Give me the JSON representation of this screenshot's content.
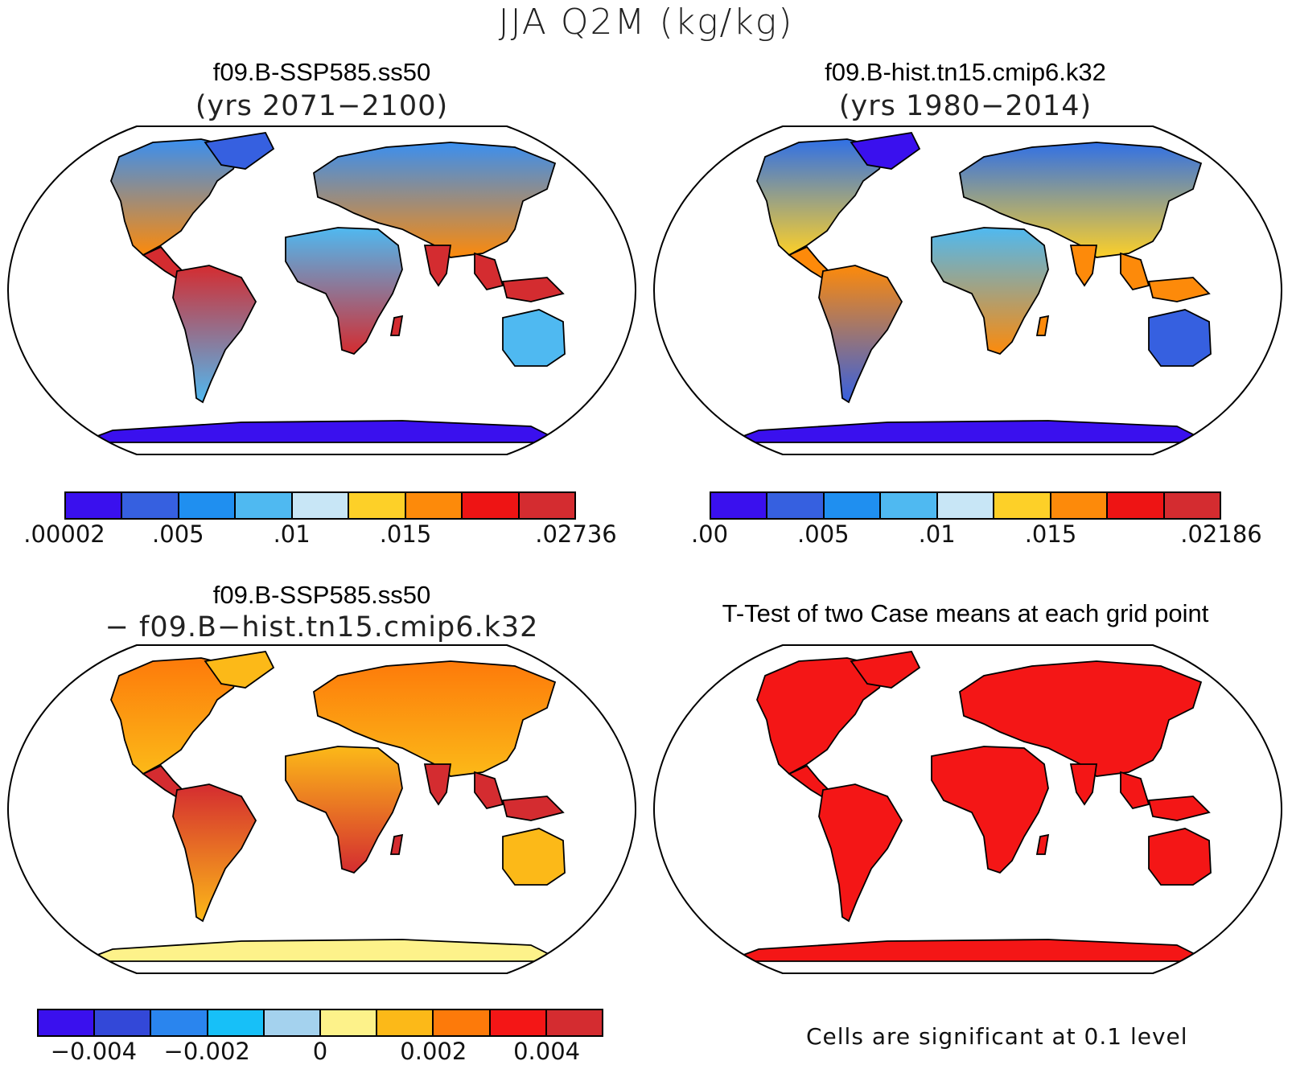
{
  "title": "JJA Q2M (kg/kg)",
  "panels": [
    {
      "id": "p1",
      "title": "f09.B-SSP585.ss50",
      "subtitle": "(yrs 2071−2100)",
      "theme": "future"
    },
    {
      "id": "p2",
      "title": "f09.B-hist.tn15.cmip6.k32",
      "subtitle": "(yrs 1980−2014)",
      "theme": "hist"
    },
    {
      "id": "p3",
      "title": "f09.B-SSP585.ss50",
      "subtitle": "− f09.B−hist.tn15.cmip6.k32",
      "theme": "diff"
    },
    {
      "id": "p4",
      "title": "T-Test of two Case means at each grid point",
      "subtitle": "",
      "theme": "ttest"
    }
  ],
  "colorbars": [
    {
      "id": "cb1",
      "colors": [
        "#3a10ee",
        "#3660e0",
        "#1f8ff0",
        "#4fb9f1",
        "#c8e6f6",
        "#fdd028",
        "#fd8a0a",
        "#ee1414",
        "#d42c30"
      ],
      "ticks": [
        ".00002",
        ".005",
        ".01",
        ".015",
        ".02736"
      ]
    },
    {
      "id": "cb2",
      "colors": [
        "#3a10ee",
        "#3660e0",
        "#1f8ff0",
        "#4fb9f1",
        "#c8e6f6",
        "#fdd028",
        "#fd8a0a",
        "#ee1414",
        "#d42c30"
      ],
      "ticks": [
        ".00",
        ".005",
        ".01",
        ".015",
        ".02186"
      ]
    },
    {
      "id": "cb3",
      "colors": [
        "#3a10ee",
        "#3348d8",
        "#2a85ee",
        "#17c0f8",
        "#a4d2ee",
        "#fdf28a",
        "#fcb918",
        "#fd7a0a",
        "#f41616",
        "#d42c30"
      ],
      "ticks": [
        "−0.004",
        "−0.002",
        "0",
        "0.002",
        "0.004"
      ]
    }
  ],
  "note": "Cells are significant at 0.1 level",
  "colors": {
    "future": {
      "north": "#3a8ff0",
      "mid": "#fd8a0a",
      "tropic": "#d42c30",
      "desert": "#4fb9f1",
      "south": "#4fb9f1",
      "arctic": "#3660e0",
      "antarctic": "#3a10ee"
    },
    "hist": {
      "north": "#3070e6",
      "mid": "#fdd028",
      "tropic": "#fd8a0a",
      "desert": "#4fb9f1",
      "south": "#3660e0",
      "arctic": "#3a10ee",
      "antarctic": "#3a10ee"
    },
    "diff": {
      "north": "#fd7a0a",
      "mid": "#fcb918",
      "tropic": "#d42c30",
      "desert": "#fcb918",
      "south": "#fcb918",
      "arctic": "#fcb918",
      "antarctic": "#fdf28a"
    },
    "ttest": {
      "north": "#f41616",
      "mid": "#f41616",
      "tropic": "#f41616",
      "desert": "#f41616",
      "south": "#f41616",
      "arctic": "#f41616",
      "antarctic": "#f41616"
    }
  }
}
